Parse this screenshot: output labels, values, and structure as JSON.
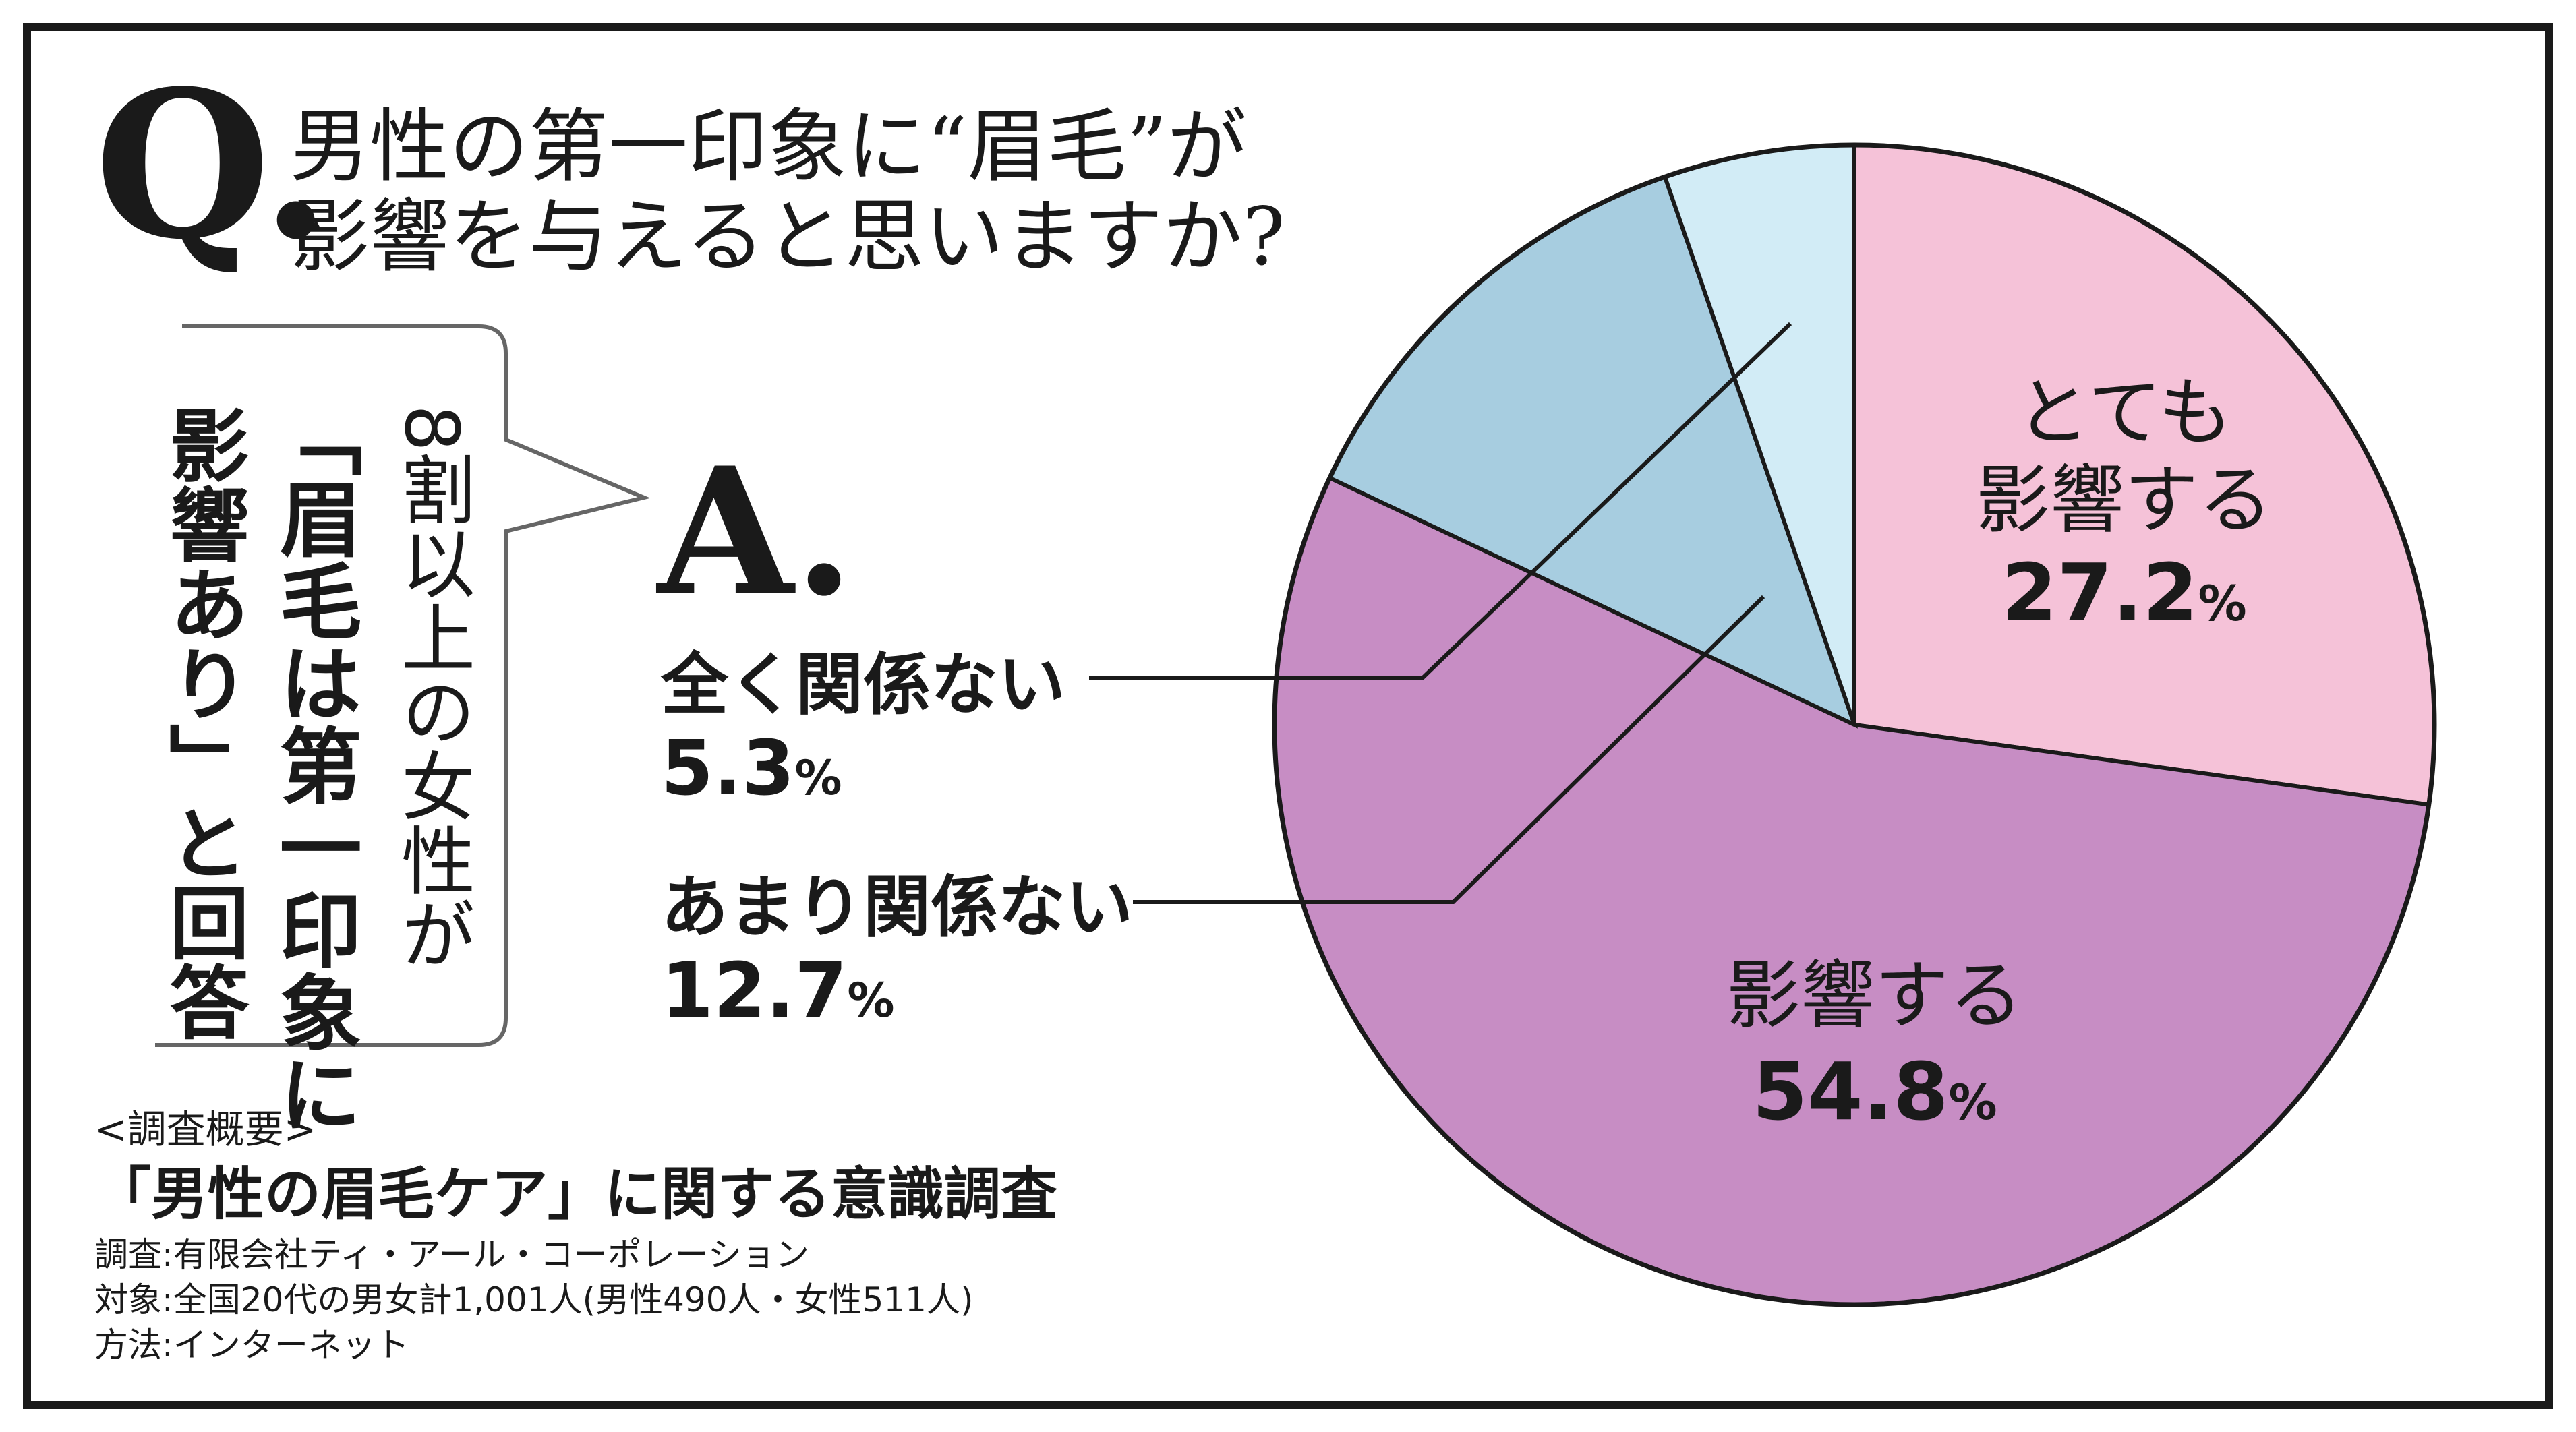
{
  "question": {
    "marker": "Q.",
    "line1": "男性の第一印象に“眉毛”が",
    "line2": "影響を与えると思いますか?"
  },
  "answer": {
    "marker": "A."
  },
  "callout": {
    "col1": "8割以上の女性が",
    "col2": "「眉毛は第一印象に",
    "col3": "影響あり」と回答"
  },
  "survey": {
    "heading": "<調査概要>",
    "title": "「男性の眉毛ケア」に関する意識調査",
    "line1": "調査:有限会社ティ・アール・コーポレーション",
    "line2": "対象:全国20代の男女計1,001人(男性490人・女性511人)",
    "line3": "方法:インターネット"
  },
  "chart_data": {
    "type": "pie",
    "unit": "%",
    "start": "12 o'clock",
    "direction": "clockwise",
    "slices": [
      {
        "label_line1": "とても",
        "label_line2": "影響する",
        "value": 27.2,
        "color": "#f5c2d8"
      },
      {
        "label_line1": "影響する",
        "label_line2": "",
        "value": 54.8,
        "color": "#c78dc4"
      },
      {
        "label_line1": "あまり関係ない",
        "label_line2": "",
        "value": 12.7,
        "color": "#a7cde0"
      },
      {
        "label_line1": "全く関係ない",
        "label_line2": "",
        "value": 5.3,
        "color": "#d2ecf6"
      }
    ]
  }
}
